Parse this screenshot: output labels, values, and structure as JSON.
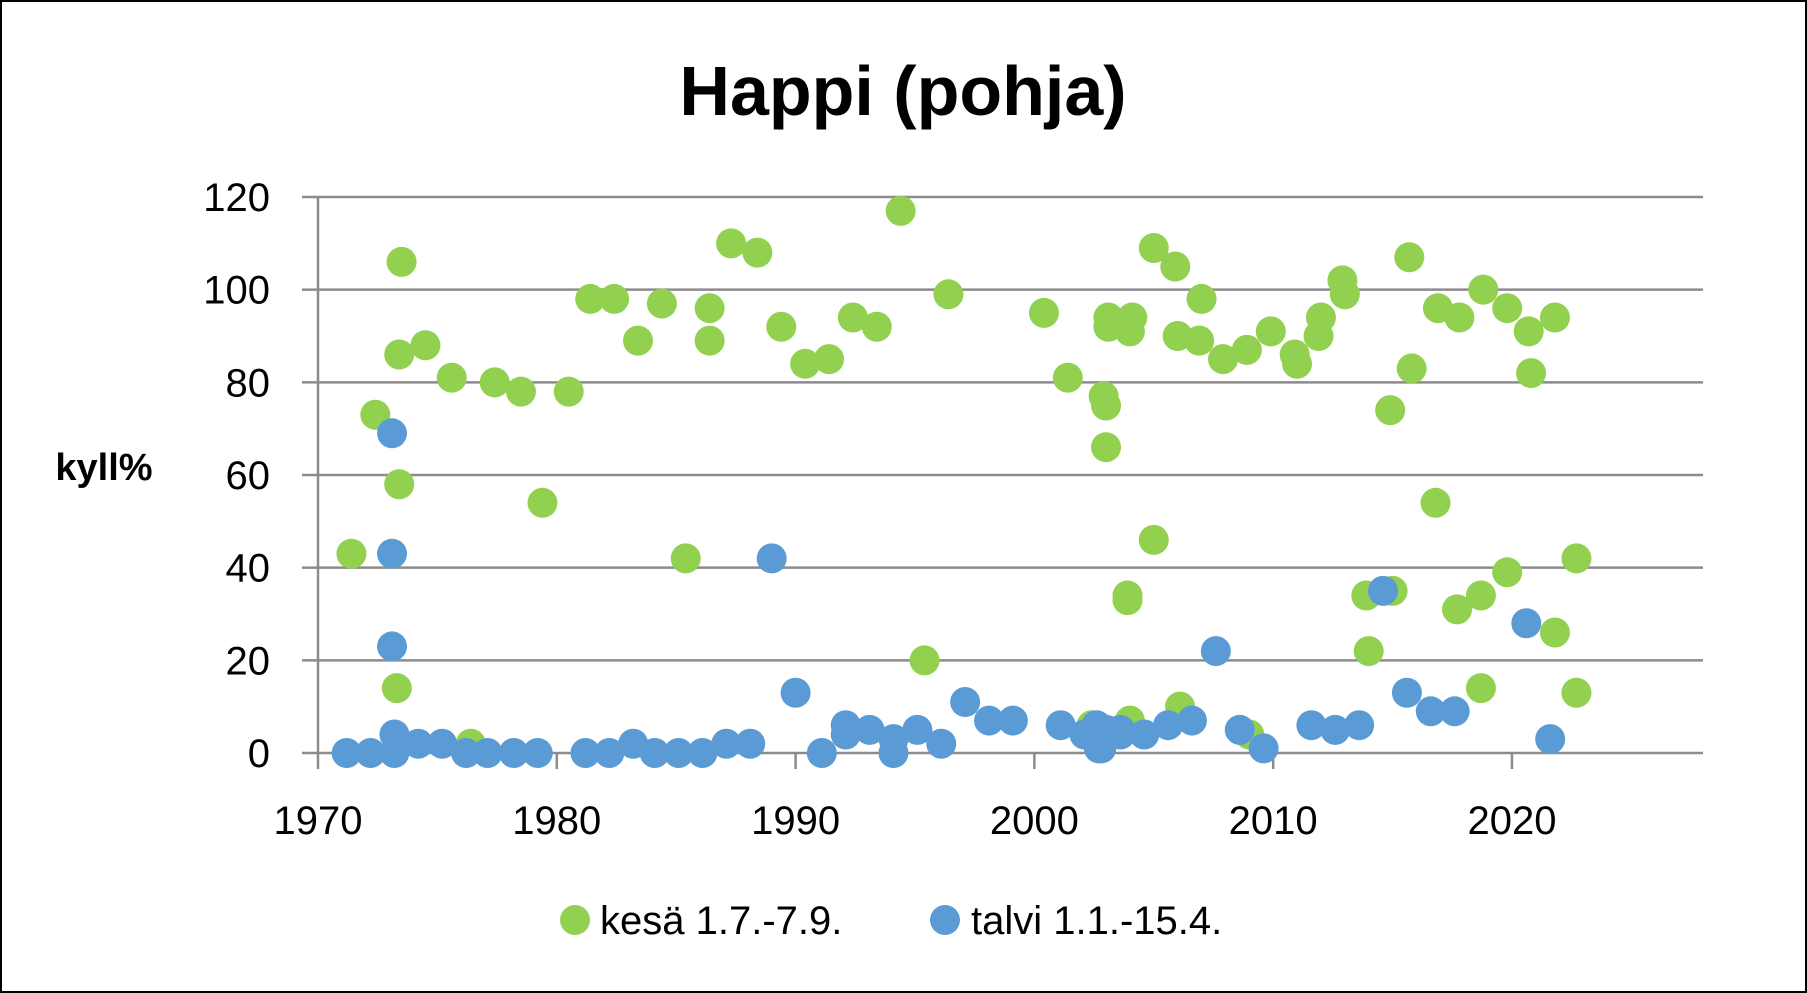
{
  "chart_data": {
    "type": "scatter",
    "title": "Happi (pohja)",
    "ylabel": "kyll%",
    "xlabel": "",
    "xlim": [
      1970,
      2028
    ],
    "ylim": [
      0,
      120
    ],
    "xticks": [
      1970,
      1980,
      1990,
      2000,
      2010,
      2020
    ],
    "yticks": [
      0,
      20,
      40,
      60,
      80,
      100,
      120
    ],
    "grid": true,
    "legend": "bottom",
    "series": [
      {
        "name": "kesä 1.7.-7.9.",
        "color": "#92D050",
        "points": [
          [
            1971.4,
            43
          ],
          [
            1972.4,
            73
          ],
          [
            1973.3,
            14
          ],
          [
            1973.4,
            58
          ],
          [
            1973.4,
            86
          ],
          [
            1973.5,
            106
          ],
          [
            1974.5,
            88
          ],
          [
            1975.6,
            81
          ],
          [
            1976.4,
            2
          ],
          [
            1977.4,
            80
          ],
          [
            1978.5,
            78
          ],
          [
            1979.4,
            54
          ],
          [
            1980.5,
            78
          ],
          [
            1981.4,
            98
          ],
          [
            1982.4,
            98
          ],
          [
            1983.4,
            89
          ],
          [
            1984.4,
            97
          ],
          [
            1985.4,
            42
          ],
          [
            1986.4,
            89
          ],
          [
            1986.4,
            96
          ],
          [
            1987.3,
            110
          ],
          [
            1988.4,
            108
          ],
          [
            1989.4,
            92
          ],
          [
            1990.4,
            84
          ],
          [
            1991.4,
            85
          ],
          [
            1992.4,
            94
          ],
          [
            1993.4,
            92
          ],
          [
            1994.4,
            117
          ],
          [
            1995.4,
            20
          ],
          [
            1996.4,
            99
          ],
          [
            2000.4,
            95
          ],
          [
            2001.4,
            81
          ],
          [
            2002.4,
            6
          ],
          [
            2002.9,
            77
          ],
          [
            2003.0,
            75
          ],
          [
            2003.0,
            66
          ],
          [
            2003.1,
            92
          ],
          [
            2003.1,
            94
          ],
          [
            2003.9,
            34
          ],
          [
            2003.9,
            33
          ],
          [
            2004.0,
            91
          ],
          [
            2004.1,
            94
          ],
          [
            2004.0,
            7
          ],
          [
            2005.0,
            46
          ],
          [
            2005.0,
            109
          ],
          [
            2005.9,
            105
          ],
          [
            2006.0,
            90
          ],
          [
            2006.1,
            10
          ],
          [
            2006.9,
            89
          ],
          [
            2007.0,
            98
          ],
          [
            2007.9,
            85
          ],
          [
            2008.9,
            87
          ],
          [
            2009.0,
            4
          ],
          [
            2009.9,
            91
          ],
          [
            2010.9,
            86
          ],
          [
            2011.0,
            84
          ],
          [
            2011.9,
            90
          ],
          [
            2012.0,
            94
          ],
          [
            2012.9,
            102
          ],
          [
            2013.0,
            99
          ],
          [
            2013.9,
            34
          ],
          [
            2014.0,
            22
          ],
          [
            2014.9,
            74
          ],
          [
            2015.0,
            35
          ],
          [
            2015.7,
            107
          ],
          [
            2015.8,
            83
          ],
          [
            2016.8,
            54
          ],
          [
            2016.9,
            96
          ],
          [
            2017.8,
            94
          ],
          [
            2017.7,
            31
          ],
          [
            2018.7,
            34
          ],
          [
            2018.7,
            14
          ],
          [
            2018.8,
            100
          ],
          [
            2019.8,
            96
          ],
          [
            2019.8,
            39
          ],
          [
            2020.7,
            91
          ],
          [
            2020.8,
            82
          ],
          [
            2021.8,
            94
          ],
          [
            2021.8,
            26
          ],
          [
            2022.7,
            42
          ],
          [
            2022.7,
            13
          ]
        ]
      },
      {
        "name": "talvi 1.1.-15.4.",
        "color": "#5B9BD5",
        "points": [
          [
            1971.2,
            0
          ],
          [
            1972.2,
            0
          ],
          [
            1973.1,
            69
          ],
          [
            1973.1,
            43
          ],
          [
            1973.1,
            23
          ],
          [
            1973.2,
            4
          ],
          [
            1973.2,
            0
          ],
          [
            1974.2,
            2
          ],
          [
            1975.2,
            2
          ],
          [
            1976.2,
            0
          ],
          [
            1977.1,
            0
          ],
          [
            1978.2,
            0
          ],
          [
            1979.2,
            0
          ],
          [
            1981.2,
            0
          ],
          [
            1982.2,
            0
          ],
          [
            1983.2,
            2
          ],
          [
            1984.1,
            0
          ],
          [
            1985.1,
            0
          ],
          [
            1986.1,
            0
          ],
          [
            1987.1,
            2
          ],
          [
            1988.1,
            2
          ],
          [
            1989.0,
            42
          ],
          [
            1990.0,
            13
          ],
          [
            1991.1,
            0
          ],
          [
            1992.1,
            6
          ],
          [
            1992.1,
            4
          ],
          [
            1993.1,
            5
          ],
          [
            1994.1,
            3
          ],
          [
            1994.1,
            0
          ],
          [
            1995.1,
            5
          ],
          [
            1996.1,
            2
          ],
          [
            1997.1,
            11
          ],
          [
            1998.1,
            7
          ],
          [
            1999.1,
            7
          ],
          [
            2001.1,
            6
          ],
          [
            2002.1,
            4
          ],
          [
            2002.6,
            6
          ],
          [
            2002.7,
            1
          ],
          [
            2002.8,
            1
          ],
          [
            2003.0,
            5
          ],
          [
            2003.6,
            4
          ],
          [
            2003.6,
            5
          ],
          [
            2004.6,
            4
          ],
          [
            2005.6,
            6
          ],
          [
            2006.6,
            7
          ],
          [
            2007.6,
            22
          ],
          [
            2008.6,
            5
          ],
          [
            2009.6,
            1
          ],
          [
            2011.6,
            6
          ],
          [
            2012.6,
            5
          ],
          [
            2013.6,
            6
          ],
          [
            2014.6,
            35
          ],
          [
            2015.6,
            13
          ],
          [
            2016.6,
            9
          ],
          [
            2017.6,
            9
          ],
          [
            2020.6,
            28
          ],
          [
            2021.6,
            3
          ]
        ]
      }
    ]
  }
}
